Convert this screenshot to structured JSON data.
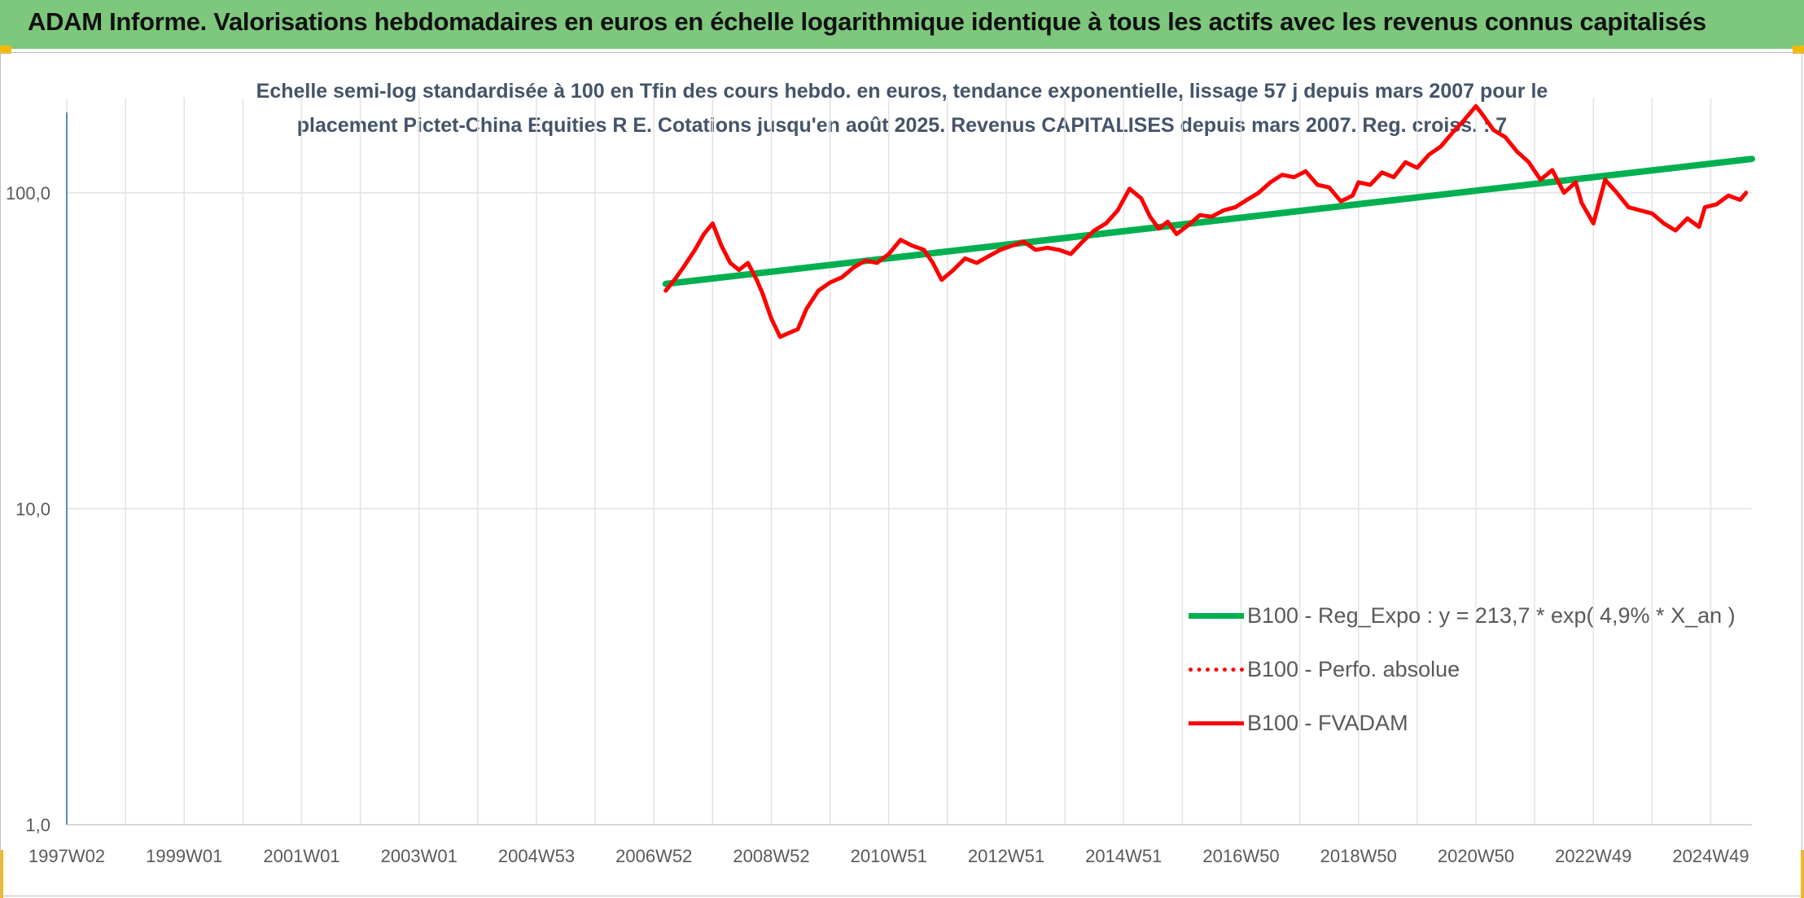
{
  "header": {
    "title": "ADAM Informe. Valorisations hebdomadaires en euros en échelle logarithmique identique à tous les actifs avec les revenus connus capitalisés",
    "background": "#7dc87c",
    "corner_color": "#f5b800"
  },
  "chart_data": {
    "type": "line",
    "title_line1": "Echelle semi-log standardisée à 100 en Tfin des cours hebdo. en euros, tendance exponentielle, lissage 57 j depuis mars 2007 pour le",
    "title_line2": "placement Pictet-China Equities R E. Cotations jusqu'en août 2025. Revenus CAPITALISES depuis mars 2007. Reg. croiss. : 7",
    "y_scale": "log",
    "ylim": [
      1,
      200
    ],
    "y_ticks": [
      {
        "value": 1,
        "label": "1,0"
      },
      {
        "value": 10,
        "label": "10,0"
      },
      {
        "value": 100,
        "label": "100,0"
      }
    ],
    "xlim": [
      1997.0,
      2025.7
    ],
    "x_ticks": [
      {
        "value": 1997.0,
        "label": "1997W02"
      },
      {
        "value": 1999.0,
        "label": "1999W01"
      },
      {
        "value": 2001.0,
        "label": "2001W01"
      },
      {
        "value": 2003.0,
        "label": "2003W01"
      },
      {
        "value": 2005.0,
        "label": "2004W53"
      },
      {
        "value": 2007.0,
        "label": "2006W52"
      },
      {
        "value": 2009.0,
        "label": "2008W52"
      },
      {
        "value": 2011.0,
        "label": "2010W51"
      },
      {
        "value": 2013.0,
        "label": "2012W51"
      },
      {
        "value": 2015.0,
        "label": "2014W51"
      },
      {
        "value": 2017.0,
        "label": "2016W50"
      },
      {
        "value": 2019.0,
        "label": "2018W50"
      },
      {
        "value": 2021.0,
        "label": "2020W50"
      },
      {
        "value": 2023.0,
        "label": "2022W49"
      },
      {
        "value": 2025.0,
        "label": "2024W49"
      }
    ],
    "grid": "vertical every year, horizontal at 1, 10, 100",
    "legend_position": "bottom-right",
    "series": [
      {
        "name": "B100 - Reg_Expo : y = 213,7 * exp( 4,9% *  X_an )",
        "color": "#00b050",
        "style": "solid",
        "x": [
          2007.2,
          2025.7
        ],
        "y": [
          51.5,
          128
        ]
      },
      {
        "name": "B100 - Perfo. absolue",
        "color": "#ff0000",
        "style": "dotted",
        "x": [],
        "y": []
      },
      {
        "name": "B100 - FVADAM",
        "color": "#ff0000",
        "style": "solid",
        "x": [
          2007.2,
          2007.35,
          2007.5,
          2007.7,
          2007.85,
          2008.0,
          2008.15,
          2008.3,
          2008.45,
          2008.6,
          2008.75,
          2008.85,
          2009.0,
          2009.15,
          2009.3,
          2009.45,
          2009.6,
          2009.8,
          2010.0,
          2010.2,
          2010.4,
          2010.6,
          2010.8,
          2011.0,
          2011.2,
          2011.4,
          2011.6,
          2011.75,
          2011.9,
          2012.1,
          2012.3,
          2012.5,
          2012.7,
          2012.9,
          2013.1,
          2013.3,
          2013.5,
          2013.7,
          2013.9,
          2014.1,
          2014.3,
          2014.5,
          2014.7,
          2014.9,
          2015.1,
          2015.3,
          2015.45,
          2015.6,
          2015.75,
          2015.9,
          2016.1,
          2016.3,
          2016.5,
          2016.7,
          2016.9,
          2017.1,
          2017.3,
          2017.5,
          2017.7,
          2017.9,
          2018.1,
          2018.3,
          2018.5,
          2018.7,
          2018.9,
          2019.0,
          2019.2,
          2019.4,
          2019.6,
          2019.8,
          2020.0,
          2020.2,
          2020.4,
          2020.6,
          2020.8,
          2021.0,
          2021.1,
          2021.3,
          2021.5,
          2021.7,
          2021.9,
          2022.1,
          2022.3,
          2022.5,
          2022.7,
          2022.8,
          2023.0,
          2023.2,
          2023.4,
          2023.6,
          2023.8,
          2024.0,
          2024.2,
          2024.4,
          2024.6,
          2024.8,
          2024.9,
          2025.1,
          2025.3,
          2025.5,
          2025.6
        ],
        "y": [
          49,
          53,
          58,
          66,
          74,
          80,
          68,
          60,
          57,
          60,
          53,
          48,
          40,
          35,
          36,
          37,
          43,
          49,
          52,
          54,
          58,
          61,
          60,
          64,
          71,
          68,
          66,
          60,
          53,
          57,
          62,
          60,
          63,
          66,
          68,
          70,
          66,
          67,
          66,
          64,
          70,
          76,
          80,
          88,
          103,
          96,
          84,
          77,
          81,
          74,
          79,
          85,
          84,
          88,
          90,
          95,
          100,
          108,
          114,
          112,
          117,
          106,
          104,
          94,
          98,
          108,
          106,
          116,
          112,
          125,
          120,
          132,
          140,
          155,
          170,
          188,
          178,
          158,
          150,
          135,
          125,
          110,
          118,
          100,
          108,
          93,
          80,
          110,
          100,
          90,
          88,
          86,
          80,
          76,
          83,
          78,
          90,
          92,
          98,
          95,
          100
        ]
      }
    ]
  }
}
